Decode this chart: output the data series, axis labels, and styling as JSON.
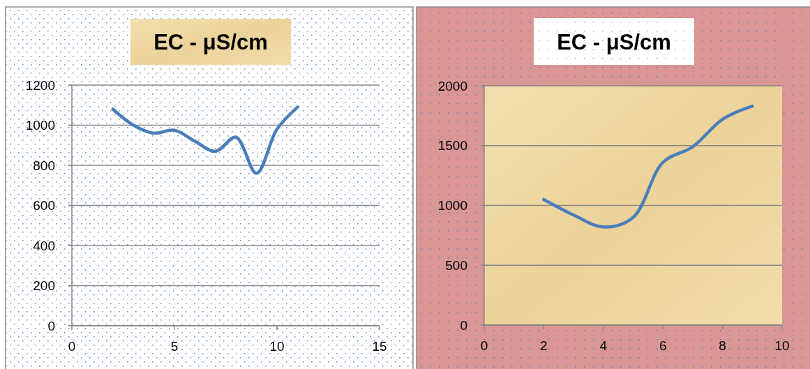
{
  "chart_data": [
    {
      "type": "line",
      "title": "EC - μS/cm",
      "x": [
        2,
        3,
        4,
        5,
        6,
        7,
        8,
        9,
        10,
        11
      ],
      "series": [
        {
          "color": "#4a7ebb",
          "values": [
            1080,
            1000,
            960,
            975,
            920,
            870,
            940,
            760,
            980,
            1090
          ]
        }
      ],
      "xlim": [
        0,
        15
      ],
      "xticks": [
        0,
        5,
        10,
        15
      ],
      "ylim": [
        0,
        1200
      ],
      "yticks": [
        0,
        200,
        400,
        600,
        800,
        1000,
        1200
      ],
      "grid": "y"
    },
    {
      "type": "line",
      "title": "EC - μS/cm",
      "x": [
        2,
        3,
        4,
        5,
        6,
        7,
        8,
        9
      ],
      "series": [
        {
          "color": "#4a7ebb",
          "values": [
            1050,
            920,
            820,
            900,
            1360,
            1490,
            1720,
            1830
          ]
        }
      ],
      "xlim": [
        0,
        10
      ],
      "xticks": [
        0,
        2,
        4,
        6,
        8,
        10
      ],
      "ylim": [
        0,
        2000
      ],
      "yticks": [
        0,
        500,
        1000,
        1500,
        2000
      ],
      "grid": "y"
    }
  ]
}
